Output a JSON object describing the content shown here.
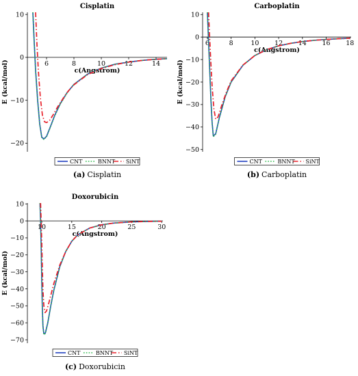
{
  "colors": {
    "CNT": "#1f3fbf",
    "BNNT": "#2db84a",
    "SiNT": "#e8202a"
  },
  "chart_data": [
    {
      "type": "line",
      "title": "Cisplatin",
      "xlabel": "c(Angstrom)",
      "ylabel": "E (kcal/mol)",
      "xlim": [
        4.6,
        14.8
      ],
      "ylim": [
        -22,
        10.5
      ],
      "xticks": [
        6,
        8,
        10,
        12,
        14
      ],
      "yticks": [
        10,
        0,
        -10,
        -20
      ],
      "ytick_labels": [
        "10",
        "0",
        "−10",
        "−20"
      ],
      "legend": [
        "CNT",
        "BNNT",
        "SiNT"
      ],
      "legend_position": "bottom",
      "caption_letter": "(a)",
      "caption_text": "Cisplatin",
      "series": [
        {
          "name": "CNT",
          "style": "solid",
          "x": [
            5.0,
            5.1,
            5.2,
            5.35,
            5.5,
            5.65,
            5.8,
            6.0,
            6.3,
            6.6,
            7.0,
            7.5,
            8.0,
            9.0,
            10.0,
            11.0,
            12.0,
            13.0,
            14.0,
            14.8
          ],
          "y": [
            10.5,
            3.5,
            -3.0,
            -10.0,
            -15.5,
            -18.6,
            -19.0,
            -18.4,
            -16.0,
            -13.5,
            -10.8,
            -8.2,
            -6.3,
            -3.9,
            -2.5,
            -1.6,
            -1.1,
            -0.7,
            -0.45,
            -0.3
          ]
        },
        {
          "name": "BNNT",
          "style": "dotted",
          "x": [
            5.0,
            5.1,
            5.2,
            5.35,
            5.5,
            5.65,
            5.8,
            6.0,
            6.3,
            6.6,
            7.0,
            7.5,
            8.0,
            9.0,
            10.0,
            11.0,
            12.0,
            13.0,
            14.0,
            14.8
          ],
          "y": [
            10.5,
            3.3,
            -3.2,
            -10.2,
            -15.6,
            -18.7,
            -19.1,
            -18.5,
            -16.1,
            -13.6,
            -10.9,
            -8.3,
            -6.3,
            -3.9,
            -2.5,
            -1.6,
            -1.1,
            -0.7,
            -0.45,
            -0.3
          ]
        },
        {
          "name": "SiNT",
          "style": "dashdot",
          "x": [
            5.2,
            5.3,
            5.4,
            5.55,
            5.7,
            5.85,
            6.0,
            6.2,
            6.5,
            6.8,
            7.2,
            7.6,
            8.0,
            9.0,
            10.0,
            11.0,
            12.0,
            13.0,
            14.0,
            14.8
          ],
          "y": [
            10.5,
            3.0,
            -3.0,
            -9.5,
            -13.5,
            -15.0,
            -15.2,
            -14.8,
            -13.3,
            -11.6,
            -9.6,
            -7.8,
            -6.4,
            -4.0,
            -2.6,
            -1.7,
            -1.1,
            -0.7,
            -0.45,
            -0.3
          ]
        }
      ]
    },
    {
      "type": "line",
      "title": "Carboplatin",
      "xlabel": "c(Angstrom)",
      "ylabel": "E (kcal/mol)",
      "xlim": [
        5.6,
        18.1
      ],
      "ylim": [
        -51,
        11
      ],
      "xticks": [
        6,
        8,
        10,
        12,
        14,
        16,
        18
      ],
      "yticks": [
        10,
        0,
        -10,
        -20,
        -30,
        -40,
        -50
      ],
      "ytick_labels": [
        "10",
        "0",
        "−10",
        "−20",
        "−30",
        "−40",
        "−50"
      ],
      "legend": [
        "CNT",
        "BNNT",
        "SiNT"
      ],
      "legend_position": "bottom",
      "caption_letter": "(b)",
      "caption_text": "Carboplatin",
      "series": [
        {
          "name": "CNT",
          "style": "solid",
          "x": [
            6.0,
            6.05,
            6.1,
            6.2,
            6.3,
            6.4,
            6.5,
            6.7,
            7.0,
            7.5,
            8.0,
            9.0,
            10.0,
            11.0,
            12.0,
            13.0,
            14.0,
            15.0,
            16.0,
            17.0,
            18.0
          ],
          "y": [
            11.0,
            5.0,
            -2.0,
            -15.0,
            -28.0,
            -38.0,
            -44.0,
            -43.0,
            -36.0,
            -26.5,
            -20.0,
            -12.5,
            -8.2,
            -5.6,
            -3.9,
            -2.8,
            -2.0,
            -1.45,
            -1.05,
            -0.75,
            -0.5
          ]
        },
        {
          "name": "BNNT",
          "style": "dotted",
          "x": [
            6.0,
            6.05,
            6.1,
            6.2,
            6.3,
            6.4,
            6.5,
            6.7,
            7.0,
            7.5,
            8.0,
            9.0,
            10.0,
            11.0,
            12.0,
            13.0,
            14.0,
            15.0,
            16.0,
            17.0,
            18.0
          ],
          "y": [
            11.0,
            4.8,
            -2.2,
            -15.2,
            -28.2,
            -38.3,
            -44.3,
            -43.2,
            -36.1,
            -26.6,
            -20.0,
            -12.5,
            -8.2,
            -5.6,
            -3.9,
            -2.8,
            -2.0,
            -1.45,
            -1.05,
            -0.75,
            -0.5
          ]
        },
        {
          "name": "SiNT",
          "style": "dashdot",
          "x": [
            6.1,
            6.15,
            6.2,
            6.3,
            6.4,
            6.55,
            6.7,
            6.9,
            7.2,
            7.6,
            8.0,
            9.0,
            10.0,
            11.0,
            12.0,
            13.0,
            14.0,
            15.0,
            16.0,
            17.0,
            18.0
          ],
          "y": [
            11.0,
            5.0,
            -1.0,
            -12.0,
            -22.0,
            -32.0,
            -36.5,
            -35.5,
            -30.5,
            -24.5,
            -19.5,
            -12.4,
            -8.2,
            -5.6,
            -3.9,
            -2.8,
            -2.0,
            -1.45,
            -1.05,
            -0.75,
            -0.5
          ]
        }
      ]
    },
    {
      "type": "line",
      "title": "Doxorubicin",
      "xlabel": "c(Angstrom)",
      "ylabel": "E (kcal/mol)",
      "xlim": [
        7.6,
        30.2
      ],
      "ylim": [
        -72,
        10.5
      ],
      "xticks": [
        10,
        15,
        20,
        25,
        30
      ],
      "yticks": [
        10,
        0,
        -10,
        -20,
        -30,
        -40,
        -50,
        -60,
        -70
      ],
      "ytick_labels": [
        "10",
        "0",
        "−10",
        "−20",
        "−30",
        "−40",
        "−50",
        "−60",
        "−70"
      ],
      "legend": [
        "CNT",
        "BNNT",
        "SiNT"
      ],
      "legend_position": "bottom",
      "caption_letter": "(c)",
      "caption_text": "Doxorubicin",
      "series": [
        {
          "name": "CNT",
          "style": "solid",
          "x": [
            9.7,
            9.8,
            9.9,
            10.0,
            10.1,
            10.2,
            10.35,
            10.6,
            11.0,
            11.5,
            12.0,
            13.0,
            14.0,
            15.0,
            16.0,
            18.0,
            20.0,
            22.0,
            25.0,
            28.0,
            30.0
          ],
          "y": [
            10.5,
            0.0,
            -15.0,
            -35.0,
            -52.0,
            -62.0,
            -66.5,
            -66.0,
            -60.0,
            -50.0,
            -41.0,
            -27.0,
            -18.0,
            -12.0,
            -8.2,
            -4.2,
            -2.3,
            -1.3,
            -0.6,
            -0.3,
            -0.2
          ]
        },
        {
          "name": "BNNT",
          "style": "dotted",
          "x": [
            9.7,
            9.8,
            9.9,
            10.0,
            10.1,
            10.2,
            10.35,
            10.6,
            11.0,
            11.5,
            12.0,
            13.0,
            14.0,
            15.0,
            16.0,
            18.0,
            20.0,
            22.0,
            25.0,
            28.0,
            30.0
          ],
          "y": [
            10.5,
            -0.5,
            -15.5,
            -35.5,
            -52.5,
            -62.5,
            -67.0,
            -66.3,
            -60.2,
            -50.1,
            -41.1,
            -27.0,
            -18.0,
            -12.0,
            -8.2,
            -4.2,
            -2.3,
            -1.3,
            -0.6,
            -0.3,
            -0.2
          ]
        },
        {
          "name": "SiNT",
          "style": "dashdot",
          "x": [
            9.8,
            9.9,
            10.0,
            10.1,
            10.2,
            10.35,
            10.55,
            10.8,
            11.2,
            11.6,
            12.0,
            13.0,
            14.0,
            15.0,
            16.0,
            18.0,
            20.0,
            22.0,
            25.0,
            28.0,
            30.0
          ],
          "y": [
            10.5,
            0.0,
            -13.0,
            -28.0,
            -41.0,
            -50.0,
            -54.0,
            -53.0,
            -48.0,
            -42.5,
            -37.0,
            -26.0,
            -18.0,
            -12.0,
            -8.2,
            -4.2,
            -2.3,
            -1.3,
            -0.6,
            -0.3,
            -0.2
          ]
        }
      ]
    }
  ]
}
